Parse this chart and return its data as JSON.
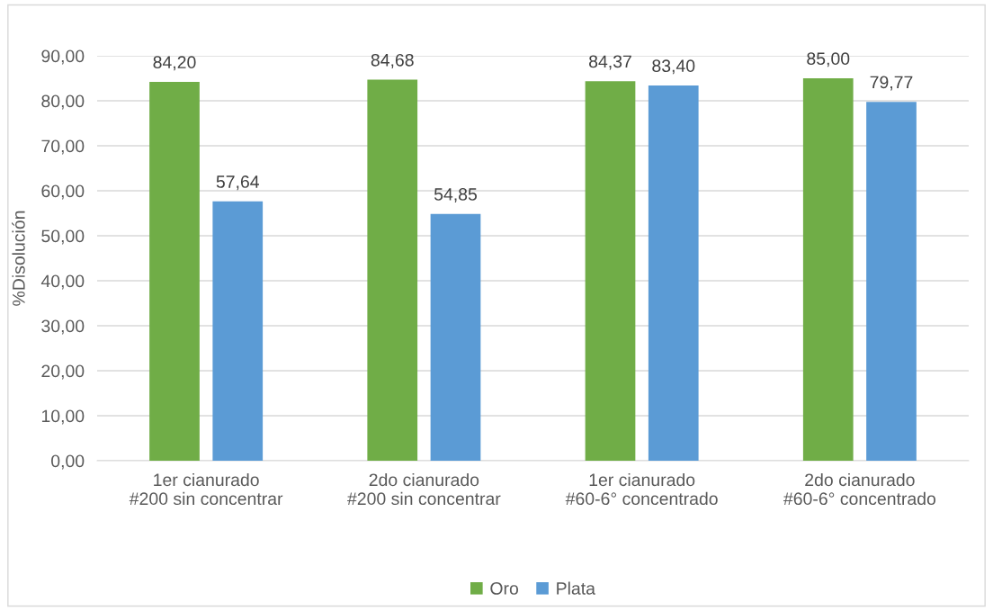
{
  "chart_data": {
    "type": "bar",
    "ylabel": "%Disolución",
    "categories": [
      "1er cianurado\n#200 sin concentrar",
      "2do cianurado\n#200 sin concentrar",
      "1er cianurado\n#60-6° concentrado",
      "2do cianurado\n#60-6° concentrado"
    ],
    "series": [
      {
        "name": "Oro",
        "color": "#70ad47",
        "values": [
          84.2,
          84.68,
          84.37,
          85.0
        ],
        "value_labels": [
          "84,20",
          "84,68",
          "84,37",
          "85,00"
        ]
      },
      {
        "name": "Plata",
        "color": "#5b9bd5",
        "values": [
          57.64,
          54.85,
          83.4,
          79.77
        ],
        "value_labels": [
          "57,64",
          "54,85",
          "83,40",
          "79,77"
        ]
      }
    ],
    "ylim": [
      0,
      90
    ],
    "yticks": [
      {
        "value": 0,
        "label": "0,00"
      },
      {
        "value": 10,
        "label": "10,00"
      },
      {
        "value": 20,
        "label": "20,00"
      },
      {
        "value": 30,
        "label": "30,00"
      },
      {
        "value": 40,
        "label": "40,00"
      },
      {
        "value": 50,
        "label": "50,00"
      },
      {
        "value": 60,
        "label": "60,00"
      },
      {
        "value": 70,
        "label": "70,00"
      },
      {
        "value": 80,
        "label": "80,00"
      },
      {
        "value": 90,
        "label": "90,00"
      }
    ],
    "grid": "y",
    "legend": "bottom"
  }
}
